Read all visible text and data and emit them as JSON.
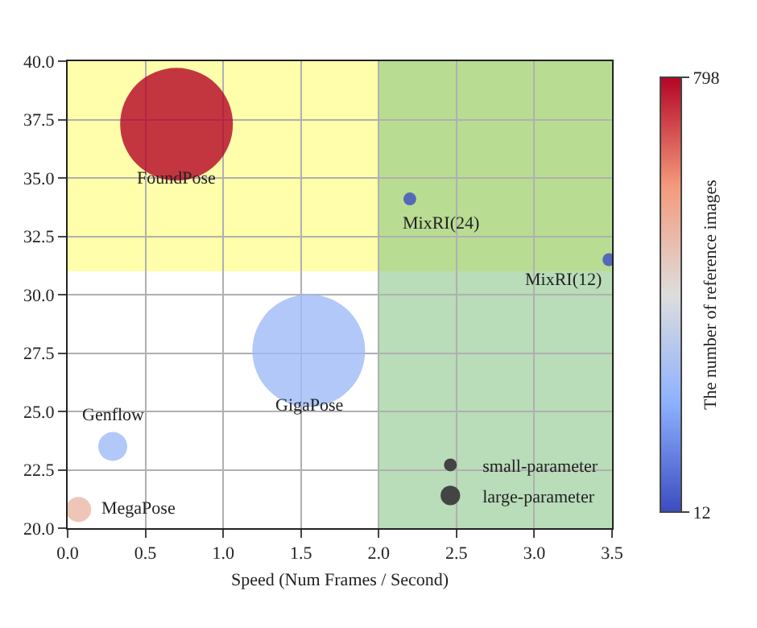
{
  "chart_data": {
    "type": "bubble",
    "xlabel": "Speed (Num Frames / Second)",
    "clabel": "The number of reference images",
    "x": [
      0.7,
      2.2,
      3.48,
      1.55,
      0.29,
      0.07
    ],
    "values": [
      37.3,
      34.1,
      31.5,
      27.6,
      23.5,
      20.8
    ],
    "sizes": [
      1,
      0.013,
      0.013,
      1,
      0.066,
      0.05
    ],
    "cvalues": [
      798,
      12,
      12,
      250,
      250,
      520
    ],
    "size_legend": [
      {
        "value": 0.013,
        "label": "small-parameter"
      },
      {
        "value": 0.03,
        "label": "large-parameter"
      }
    ],
    "clim": [
      12,
      798
    ],
    "cticks": [
      12,
      798
    ],
    "xlim": [
      0,
      3.5
    ],
    "xticks": [
      {
        "value": 0,
        "label": "0.0"
      },
      0.5,
      {
        "value": 1,
        "label": "1.0"
      },
      1.5,
      {
        "value": 2,
        "label": "2.0"
      },
      2.5,
      {
        "value": 3,
        "label": "3.0"
      },
      3.5
    ],
    "ylim": [
      20,
      40
    ],
    "yticks": [
      {
        "value": 20,
        "label": "20.0"
      },
      22.5,
      {
        "value": 25,
        "label": "25.0"
      },
      27.5,
      {
        "value": 30,
        "label": "30.0"
      },
      32.5,
      {
        "value": 35,
        "label": "35.0"
      },
      37.5,
      {
        "value": 40,
        "label": "40.0"
      }
    ],
    "bands": [
      {
        "axis": "y",
        "from": 31,
        "to": 40,
        "color": "#ffff66"
      },
      {
        "axis": "x",
        "from": 2,
        "to": 3.5,
        "color": "#7fbf7f"
      }
    ],
    "annotations": [
      {
        "text": "FoundPose",
        "x": 0.7,
        "y": 37.3
      },
      {
        "text": "MixRI(24)",
        "x": 2.2,
        "y": 34.1
      },
      {
        "text": "MixRI(12)",
        "x": 3.48,
        "y": 31.5
      },
      {
        "text": "GigaPose",
        "x": 1.55,
        "y": 27.6
      },
      {
        "text": "Genflow",
        "x": 0.29,
        "y": 23.5
      },
      {
        "text": "MegaPose",
        "x": 0.07,
        "y": 20.8
      }
    ],
    "grid": true
  }
}
